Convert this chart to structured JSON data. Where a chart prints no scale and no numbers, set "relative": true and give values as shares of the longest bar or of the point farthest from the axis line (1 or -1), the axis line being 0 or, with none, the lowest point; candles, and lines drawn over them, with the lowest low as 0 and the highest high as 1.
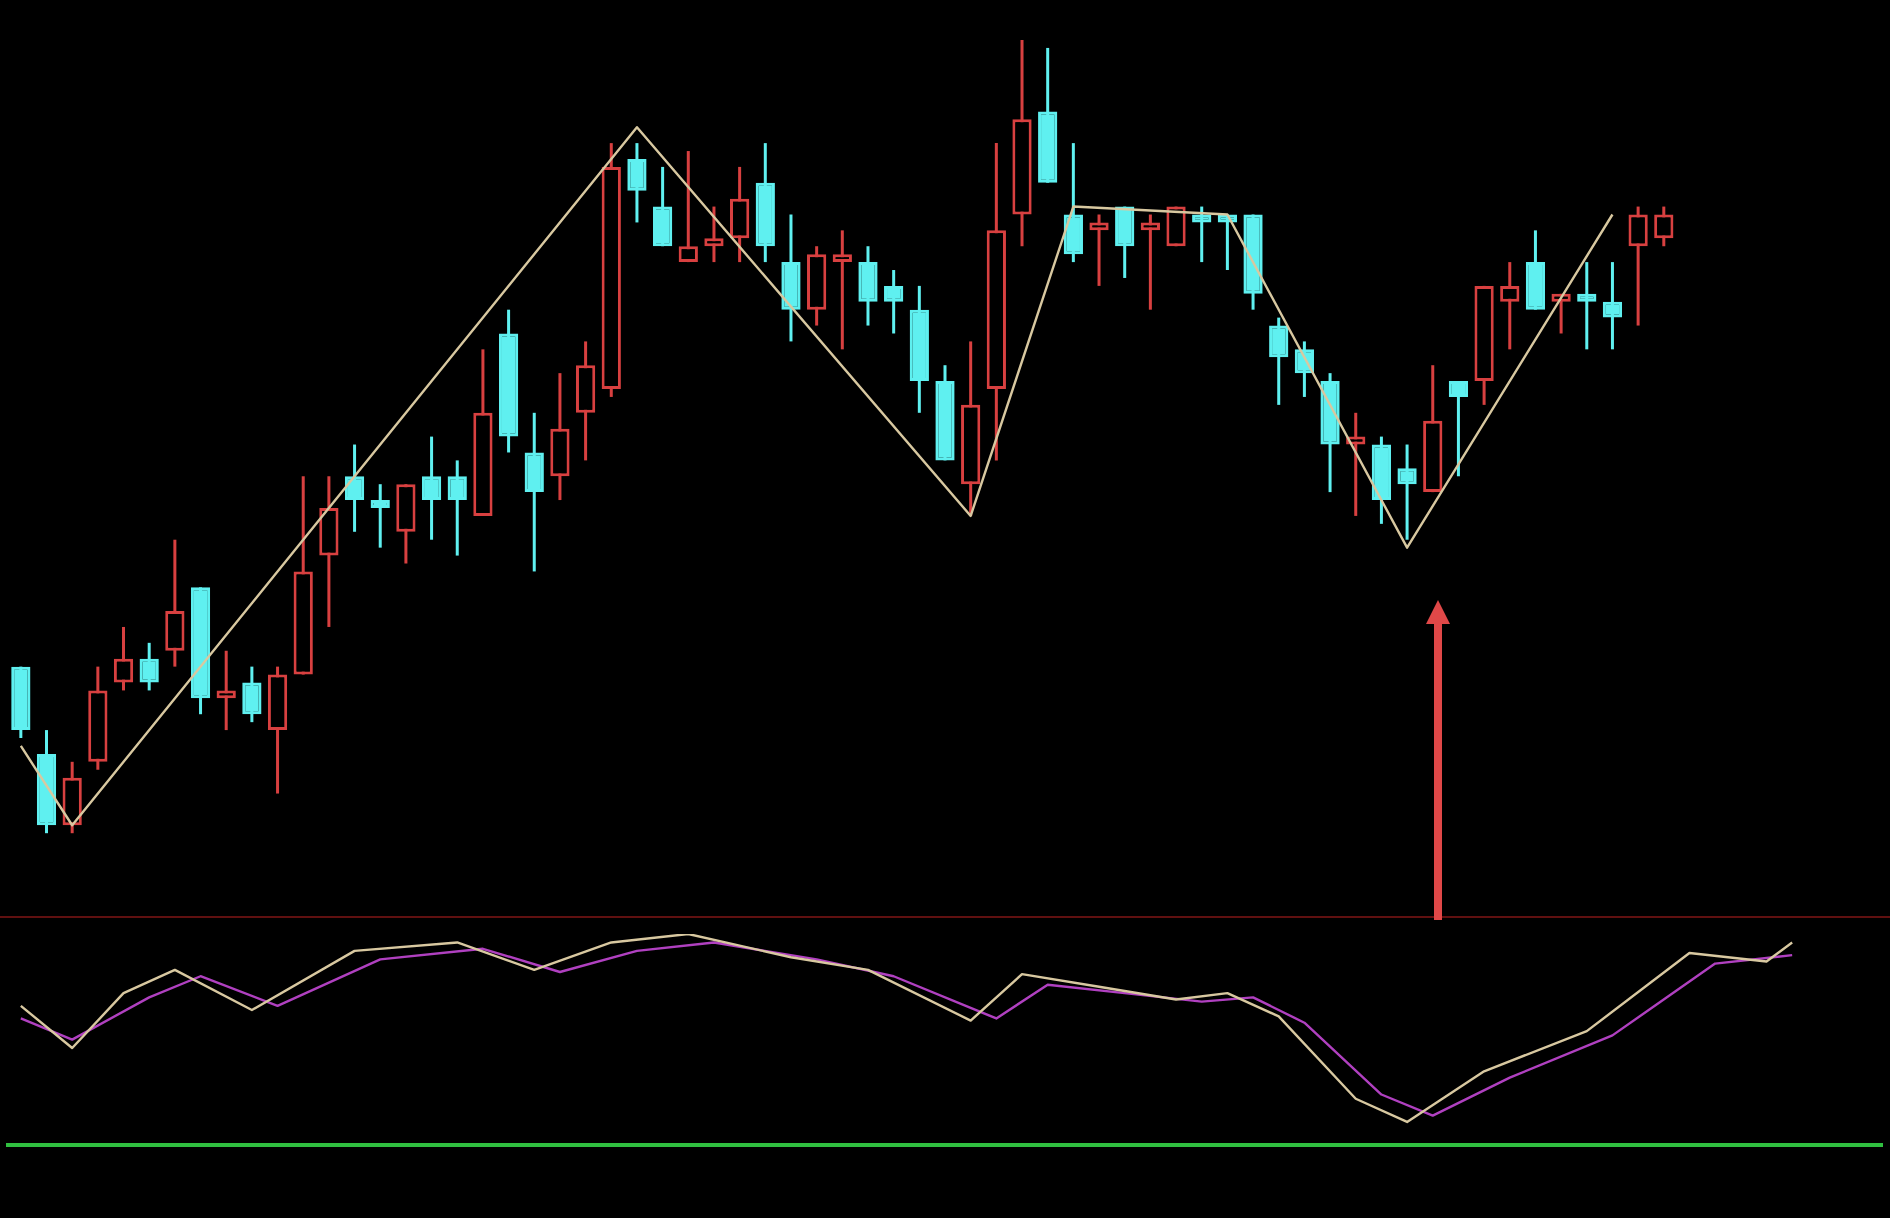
{
  "chart_data": [
    {
      "type": "candlestick",
      "relative": true,
      "categories": [
        null,
        null,
        null,
        null,
        null,
        null,
        null,
        null,
        null,
        null,
        null,
        null,
        null,
        null,
        null,
        null,
        null,
        null,
        null,
        null,
        null,
        null,
        null,
        null,
        null,
        null,
        null,
        null,
        null,
        null,
        null,
        null,
        null,
        null,
        null,
        null,
        null,
        null,
        null,
        null,
        null,
        null,
        null,
        null,
        null,
        null,
        null,
        null,
        null,
        null,
        null,
        null,
        null,
        null,
        null,
        null,
        null,
        null,
        null,
        null,
        null,
        null,
        null,
        null,
        null,
        null,
        null,
        null,
        null,
        null,
        null,
        null,
        null
      ],
      "ohlc": [
        [
          0.21,
          0.21,
          0.12,
          0.13
        ],
        [
          0.1,
          0.13,
          0,
          0.01
        ],
        [
          0.01,
          0.09,
          0,
          0.07
        ],
        [
          0.09,
          0.21,
          0.08,
          0.18
        ],
        [
          0.19,
          0.26,
          0.18,
          0.22
        ],
        [
          0.22,
          0.24,
          0.18,
          0.19
        ],
        [
          0.23,
          0.37,
          0.21,
          0.28
        ],
        [
          0.31,
          0.31,
          0.15,
          0.17
        ],
        [
          0.17,
          0.23,
          0.13,
          0.18
        ],
        [
          0.19,
          0.21,
          0.14,
          0.15
        ],
        [
          0.13,
          0.21,
          0.05,
          0.2
        ],
        [
          0.2,
          0.45,
          0.2,
          0.33
        ],
        [
          0.35,
          0.45,
          0.26,
          0.41
        ],
        [
          0.45,
          0.49,
          0.38,
          0.42
        ],
        [
          0.42,
          0.44,
          0.36,
          0.41
        ],
        [
          0.38,
          0.44,
          0.34,
          0.44
        ],
        [
          0.45,
          0.5,
          0.37,
          0.42
        ],
        [
          0.45,
          0.47,
          0.35,
          0.42
        ],
        [
          0.4,
          0.61,
          0.4,
          0.53
        ],
        [
          0.63,
          0.66,
          0.48,
          0.5
        ],
        [
          0.48,
          0.53,
          0.33,
          0.43
        ],
        [
          0.45,
          0.58,
          0.42,
          0.51
        ],
        [
          0.53,
          0.62,
          0.47,
          0.59
        ],
        [
          0.56,
          0.87,
          0.55,
          0.84
        ],
        [
          0.85,
          0.87,
          0.77,
          0.81
        ],
        [
          0.79,
          0.84,
          0.74,
          0.74
        ],
        [
          0.72,
          0.86,
          0.72,
          0.74
        ],
        [
          0.74,
          0.79,
          0.72,
          0.75
        ],
        [
          0.75,
          0.84,
          0.72,
          0.8
        ],
        [
          0.82,
          0.87,
          0.72,
          0.74
        ],
        [
          0.72,
          0.78,
          0.62,
          0.66
        ],
        [
          0.66,
          0.74,
          0.64,
          0.73
        ],
        [
          0.72,
          0.76,
          0.61,
          0.73
        ],
        [
          0.72,
          0.74,
          0.64,
          0.67
        ],
        [
          0.69,
          0.71,
          0.63,
          0.67
        ],
        [
          0.66,
          0.69,
          0.53,
          0.57
        ],
        [
          0.57,
          0.59,
          0.47,
          0.47
        ],
        [
          0.44,
          0.62,
          0.4,
          0.54
        ],
        [
          0.56,
          0.87,
          0.47,
          0.76
        ],
        [
          0.78,
          1,
          0.74,
          0.9
        ],
        [
          0.91,
          0.99,
          0.82,
          0.82
        ],
        [
          0.78,
          0.87,
          0.72,
          0.73
        ],
        [
          0.76,
          0.78,
          0.69,
          0.77
        ],
        [
          0.79,
          0.79,
          0.7,
          0.74
        ],
        [
          0.76,
          0.78,
          0.66,
          0.77
        ],
        [
          0.74,
          0.79,
          0.74,
          0.79
        ],
        [
          0.78,
          0.79,
          0.72,
          0.77
        ],
        [
          0.78,
          0.78,
          0.71,
          0.77
        ],
        [
          0.78,
          0.78,
          0.66,
          0.68
        ],
        [
          0.64,
          0.65,
          0.54,
          0.6
        ],
        [
          0.61,
          0.62,
          0.55,
          0.58
        ],
        [
          0.57,
          0.58,
          0.43,
          0.49
        ],
        [
          0.49,
          0.53,
          0.4,
          0.5
        ],
        [
          0.49,
          0.5,
          0.39,
          0.42
        ],
        [
          0.46,
          0.49,
          0.37,
          0.44
        ],
        [
          0.43,
          0.59,
          0.43,
          0.52
        ],
        [
          0.57,
          0.57,
          0.45,
          0.55
        ],
        [
          0.57,
          0.69,
          0.54,
          0.69
        ],
        [
          0.67,
          0.72,
          0.61,
          0.69
        ],
        [
          0.72,
          0.76,
          0.66,
          0.66
        ],
        [
          0.67,
          0.68,
          0.63,
          0.68
        ],
        [
          0.68,
          0.72,
          0.61,
          0.67
        ],
        [
          0.67,
          0.72,
          0.61,
          0.65
        ],
        [
          0.74,
          0.79,
          0.64,
          0.78
        ],
        [
          0.75,
          0.79,
          0.74,
          0.78
        ],
        null,
        null,
        null,
        null,
        null,
        null,
        null,
        null
      ],
      "colors": [
        "#5ff0f0",
        "#5ff0f0",
        "#d84040",
        "#d84040",
        "#d84040",
        "#5ff0f0",
        "#d84040",
        "#5ff0f0",
        "#d84040",
        "#5ff0f0",
        "#d84040",
        "#d84040",
        "#d84040",
        "#5ff0f0",
        "#5ff0f0",
        "#d84040",
        "#5ff0f0",
        "#5ff0f0",
        "#d84040",
        "#5ff0f0",
        "#5ff0f0",
        "#d84040",
        "#d84040",
        "#d84040",
        "#5ff0f0",
        "#5ff0f0",
        "#d84040",
        "#d84040",
        "#d84040",
        "#5ff0f0",
        "#5ff0f0",
        "#d84040",
        "#d84040",
        "#5ff0f0",
        "#5ff0f0",
        "#5ff0f0",
        "#5ff0f0",
        "#d84040",
        "#d84040",
        "#d84040",
        "#5ff0f0",
        "#5ff0f0",
        "#d84040",
        "#5ff0f0",
        "#d84040",
        "#d84040",
        "#5ff0f0",
        "#5ff0f0",
        "#5ff0f0",
        "#5ff0f0",
        "#5ff0f0",
        "#5ff0f0",
        "#d84040",
        "#5ff0f0",
        "#5ff0f0",
        "#d84040",
        "#5ff0f0",
        "#d84040",
        "#d84040",
        "#5ff0f0",
        "#d84040",
        "#5ff0f0",
        "#5ff0f0",
        "#d84040",
        "#d84040",
        null,
        null,
        null,
        null,
        null,
        null,
        null,
        null
      ],
      "series": [
        {
          "type": "line",
          "color": "#d8c8a0",
          "values": [
            0.11,
            null,
            0.01,
            null,
            null,
            null,
            null,
            null,
            null,
            null,
            null,
            null,
            null,
            null,
            null,
            null,
            null,
            null,
            null,
            null,
            null,
            null,
            null,
            null,
            0.89,
            null,
            null,
            null,
            null,
            null,
            null,
            null,
            null,
            null,
            null,
            null,
            null,
            0.4,
            null,
            null,
            null,
            0.79,
            null,
            null,
            null,
            null,
            null,
            0.78,
            null,
            null,
            null,
            null,
            null,
            null,
            0.36,
            null,
            null,
            null,
            null,
            null,
            null,
            null,
            0.78,
            null,
            null,
            null,
            null,
            null,
            null,
            null,
            null,
            null,
            null
          ]
        }
      ],
      "legend": false,
      "grid": false
    },
    {
      "type": "line",
      "relative": true,
      "categories": [
        null,
        null,
        null,
        null,
        null,
        null,
        null,
        null,
        null,
        null,
        null,
        null,
        null,
        null,
        null,
        null,
        null,
        null,
        null,
        null,
        null,
        null,
        null,
        null,
        null,
        null,
        null,
        null,
        null,
        null,
        null,
        null,
        null,
        null,
        null,
        null,
        null,
        null,
        null,
        null,
        null,
        null,
        null,
        null,
        null,
        null,
        null,
        null,
        null,
        null,
        null,
        null,
        null,
        null,
        null,
        null,
        null,
        null,
        null,
        null,
        null,
        null,
        null,
        null,
        null,
        null,
        null,
        null,
        null,
        null,
        null,
        null,
        null
      ],
      "series": [
        {
          "color": "#d8c8a0",
          "values": [
            0.66,
            null,
            0.46,
            null,
            0.72,
            null,
            0.83,
            null,
            null,
            0.64,
            null,
            null,
            null,
            0.92,
            null,
            null,
            null,
            0.96,
            null,
            null,
            0.83,
            null,
            null,
            0.96,
            null,
            null,
            1,
            null,
            null,
            null,
            0.89,
            null,
            null,
            0.83,
            null,
            null,
            null,
            0.59,
            null,
            0.81,
            null,
            null,
            0.75,
            null,
            null,
            0.69,
            null,
            0.72,
            null,
            0.61,
            null,
            null,
            0.22,
            null,
            0.11,
            null,
            null,
            0.35,
            null,
            null,
            null,
            0.54,
            null,
            null,
            null,
            0.91,
            null,
            null,
            0.87,
            0.96,
            null,
            null,
            null
          ]
        },
        {
          "color": "#b040c0",
          "values": [
            0.6,
            null,
            0.5,
            null,
            null,
            0.7,
            null,
            0.8,
            null,
            null,
            0.66,
            null,
            null,
            null,
            0.88,
            null,
            null,
            null,
            0.93,
            null,
            null,
            0.82,
            null,
            null,
            0.92,
            null,
            null,
            0.96,
            null,
            null,
            null,
            0.88,
            null,
            null,
            0.8,
            null,
            null,
            null,
            0.6,
            null,
            0.76,
            null,
            null,
            0.72,
            null,
            null,
            0.68,
            null,
            0.7,
            null,
            0.58,
            null,
            null,
            0.24,
            null,
            0.14,
            null,
            null,
            0.32,
            null,
            null,
            null,
            0.52,
            null,
            null,
            null,
            0.86,
            null,
            null,
            0.9,
            null,
            null,
            null
          ]
        }
      ],
      "legend": false,
      "grid": false
    }
  ]
}
